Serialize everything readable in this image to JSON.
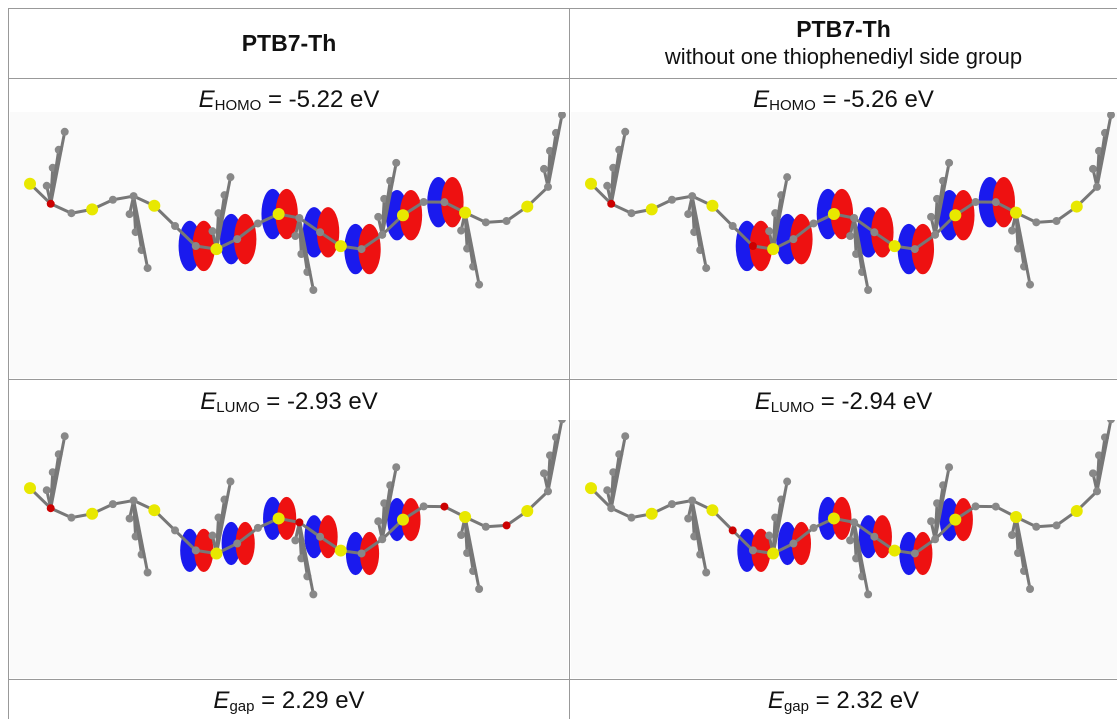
{
  "columns": [
    {
      "title": "PTB7-Th",
      "homo": {
        "symbol": "E",
        "subscript": "HOMO",
        "value": "= -5.22 eV"
      },
      "lumo": {
        "symbol": "E",
        "subscript": "LUMO",
        "value": "= -2.93 eV"
      },
      "gap": {
        "symbol": "E",
        "subscript": "gap",
        "value": "= 2.29 eV"
      }
    },
    {
      "title": "PTB7-Th",
      "subtitle": "without one thiophenediyl side group",
      "homo": {
        "symbol": "E",
        "subscript": "HOMO",
        "value": "= -5.26 eV"
      },
      "lumo": {
        "symbol": "E",
        "subscript": "LUMO",
        "value": "= -2.94 eV"
      },
      "gap": {
        "symbol": "E",
        "subscript": "gap",
        "value": "= 2.32 eV"
      }
    }
  ]
}
